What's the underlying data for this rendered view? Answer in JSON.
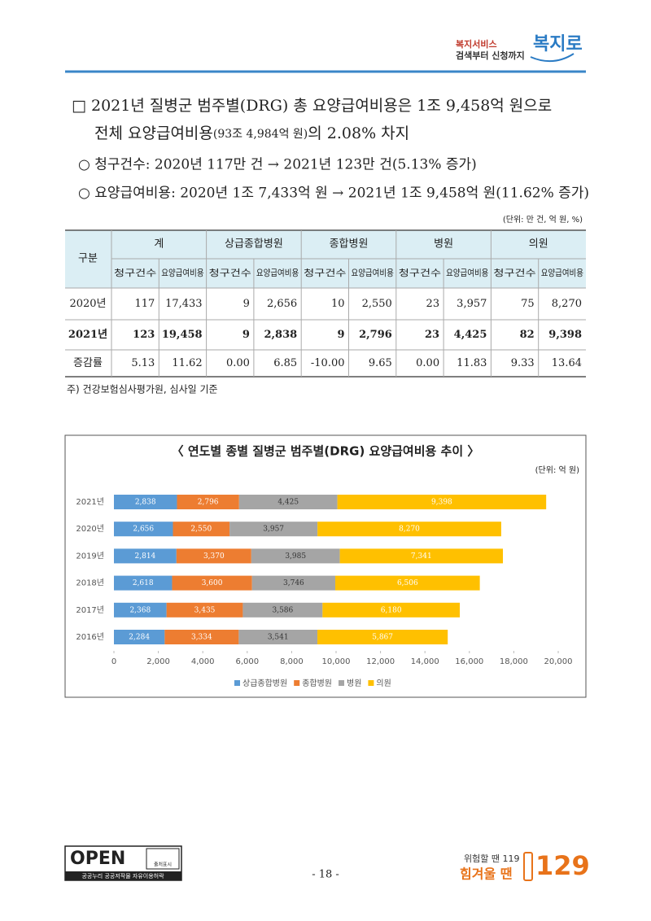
{
  "header": {
    "logo_top": "복지서비스",
    "logo_bottom": "검색부터 신청까지",
    "logo_brand": "복지로"
  },
  "summary": {
    "line1": "□ 2021년 질병군 범주별(DRG) 총 요양급여비용은 1조 9,458억 원으로",
    "line2_a": "전체 요양급여비용",
    "line2_b": "(93조 4,984억 원)",
    "line2_c": "의 2.08% 차지",
    "bullets": [
      "○ 청구건수: 2020년 117만 건 → 2021년 123만 건(5.13% 증가)",
      "○ 요양급여비용: 2020년 1조 7,433억 원 → 2021년 1조 9,458억 원(11.62% 증가)"
    ]
  },
  "table": {
    "unit": "(단위: 만 건, 억 원, %)",
    "header_top": [
      "구분",
      "계",
      "상급종합병원",
      "종합병원",
      "병원",
      "의원"
    ],
    "header_sub": [
      "청구건수",
      "요양급여비용",
      "청구건수",
      "요양급여비용",
      "청구건수",
      "요양급여비용",
      "청구건수",
      "요양급여비용",
      "청구건수",
      "요양급여비용"
    ],
    "rows": [
      [
        "2020년",
        "117",
        "17,433",
        "9",
        "2,656",
        "10",
        "2,550",
        "23",
        "3,957",
        "75",
        "8,270"
      ],
      [
        "2021년",
        "123",
        "19,458",
        "9",
        "2,838",
        "9",
        "2,796",
        "23",
        "4,425",
        "82",
        "9,398"
      ],
      [
        "증감률",
        "5.13",
        "11.62",
        "0.00",
        "6.85",
        "-10.00",
        "9.65",
        "0.00",
        "11.83",
        "9.33",
        "13.64"
      ]
    ],
    "note": "주) 건강보험심사평가원, 심사일 기준"
  },
  "chart_data": {
    "type": "stacked_barh",
    "title": "〈 연도별 종별 질병군 범주별(DRG) 요양급여비용 추이 〉",
    "unit": "(단위: 억 원)",
    "categories": [
      "2021년",
      "2020년",
      "2019년",
      "2018년",
      "2017년",
      "2016년"
    ],
    "series": [
      {
        "name": "상급종합병원",
        "color": "#5b9bd5",
        "values": [
          2838,
          2656,
          2814,
          2618,
          2368,
          2284
        ],
        "value_labels": [
          "2,838",
          "2,656",
          "2,814",
          "2,618",
          "2,368",
          "2,284"
        ]
      },
      {
        "name": "종합병원",
        "color": "#ed7d31",
        "values": [
          2796,
          2550,
          3370,
          3600,
          3435,
          3334
        ],
        "value_labels": [
          "2,796",
          "2,550",
          "3,370",
          "3,600",
          "3,435",
          "3,334"
        ]
      },
      {
        "name": "병원",
        "color": "#a5a5a5",
        "values": [
          4425,
          3957,
          3985,
          3746,
          3586,
          3541
        ],
        "value_labels": [
          "4,425",
          "3,957",
          "3,985",
          "3,746",
          "3,586",
          "3,541"
        ]
      },
      {
        "name": "의원",
        "color": "#ffc000",
        "values": [
          9398,
          8270,
          7341,
          6506,
          6180,
          5867
        ],
        "value_labels": [
          "9,398",
          "8,270",
          "7,341",
          "6,506",
          "6,180",
          "5,867"
        ]
      }
    ],
    "xlim": [
      0,
      20000
    ],
    "xticks": [
      0,
      {
        "value": 2000,
        "label": "2,000"
      },
      {
        "value": 4000,
        "label": "4,000"
      },
      {
        "value": 6000,
        "label": "6,000"
      },
      {
        "value": 8000,
        "label": "8,000"
      },
      {
        "value": 10000,
        "label": "10,000"
      },
      {
        "value": 12000,
        "label": "12,000"
      },
      {
        "value": 14000,
        "label": "14,000"
      },
      {
        "value": 16000,
        "label": "16,000"
      },
      {
        "value": 18000,
        "label": "18,000"
      },
      {
        "value": 20000,
        "label": "20,000"
      }
    ],
    "legend": "bottom"
  },
  "footer": {
    "open": "OPEN",
    "open_badge": "출처표시",
    "open_caption": "공공누리 공공저작물 자유이용허락",
    "page": "- 18 -",
    "hotline_small": "위험할 땐 119",
    "hotline_big": "힘겨울 땐",
    "hotline_num": "129"
  }
}
